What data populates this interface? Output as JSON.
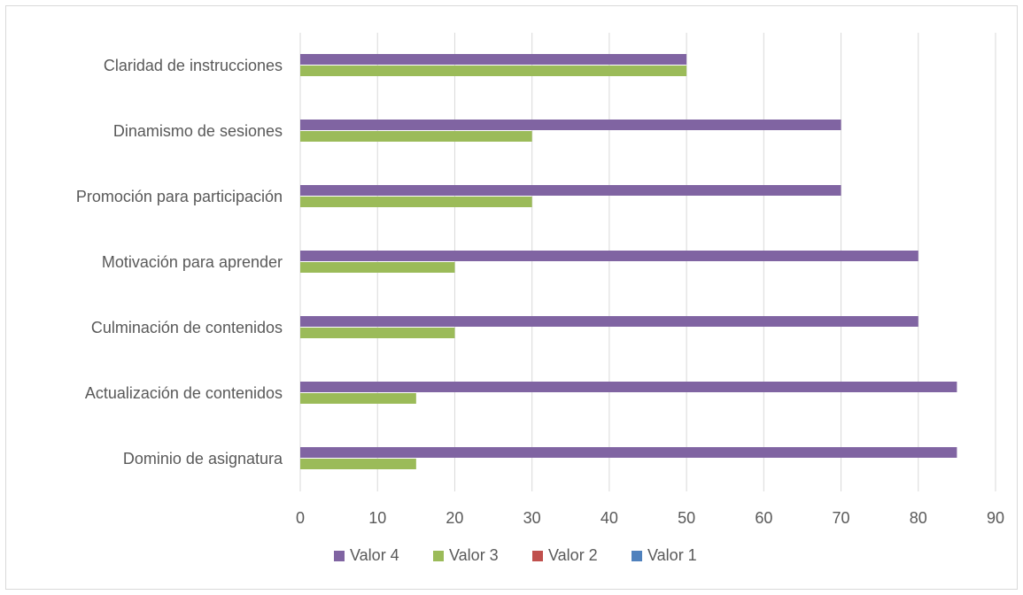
{
  "chart_data": {
    "type": "bar",
    "orientation": "horizontal",
    "categories": [
      "Claridad de instrucciones",
      "Dinamismo de sesiones",
      "Promoción para participación",
      "Motivación para aprender",
      "Culminación de contenidos ",
      "Actualización de contenidos",
      "Dominio de asignatura"
    ],
    "series": [
      {
        "name": "Valor 4",
        "color": "#8064a2",
        "values": [
          50,
          70,
          70,
          80,
          80,
          85,
          85
        ]
      },
      {
        "name": "Valor 3",
        "color": "#9bbb59",
        "values": [
          50,
          30,
          30,
          20,
          20,
          15,
          15
        ]
      },
      {
        "name": "Valor 2",
        "color": "#c0504d",
        "values": [
          0,
          0,
          0,
          0,
          0,
          0,
          0
        ]
      },
      {
        "name": "Valor 1",
        "color": "#4f81bd",
        "values": [
          0,
          0,
          0,
          0,
          0,
          0,
          0
        ]
      }
    ],
    "xlim": [
      0,
      90
    ],
    "xticks": [
      0,
      10,
      20,
      30,
      40,
      50,
      60,
      70,
      80,
      90
    ],
    "grid": true,
    "legend_position": "bottom",
    "title": "",
    "xlabel": "",
    "ylabel": ""
  }
}
